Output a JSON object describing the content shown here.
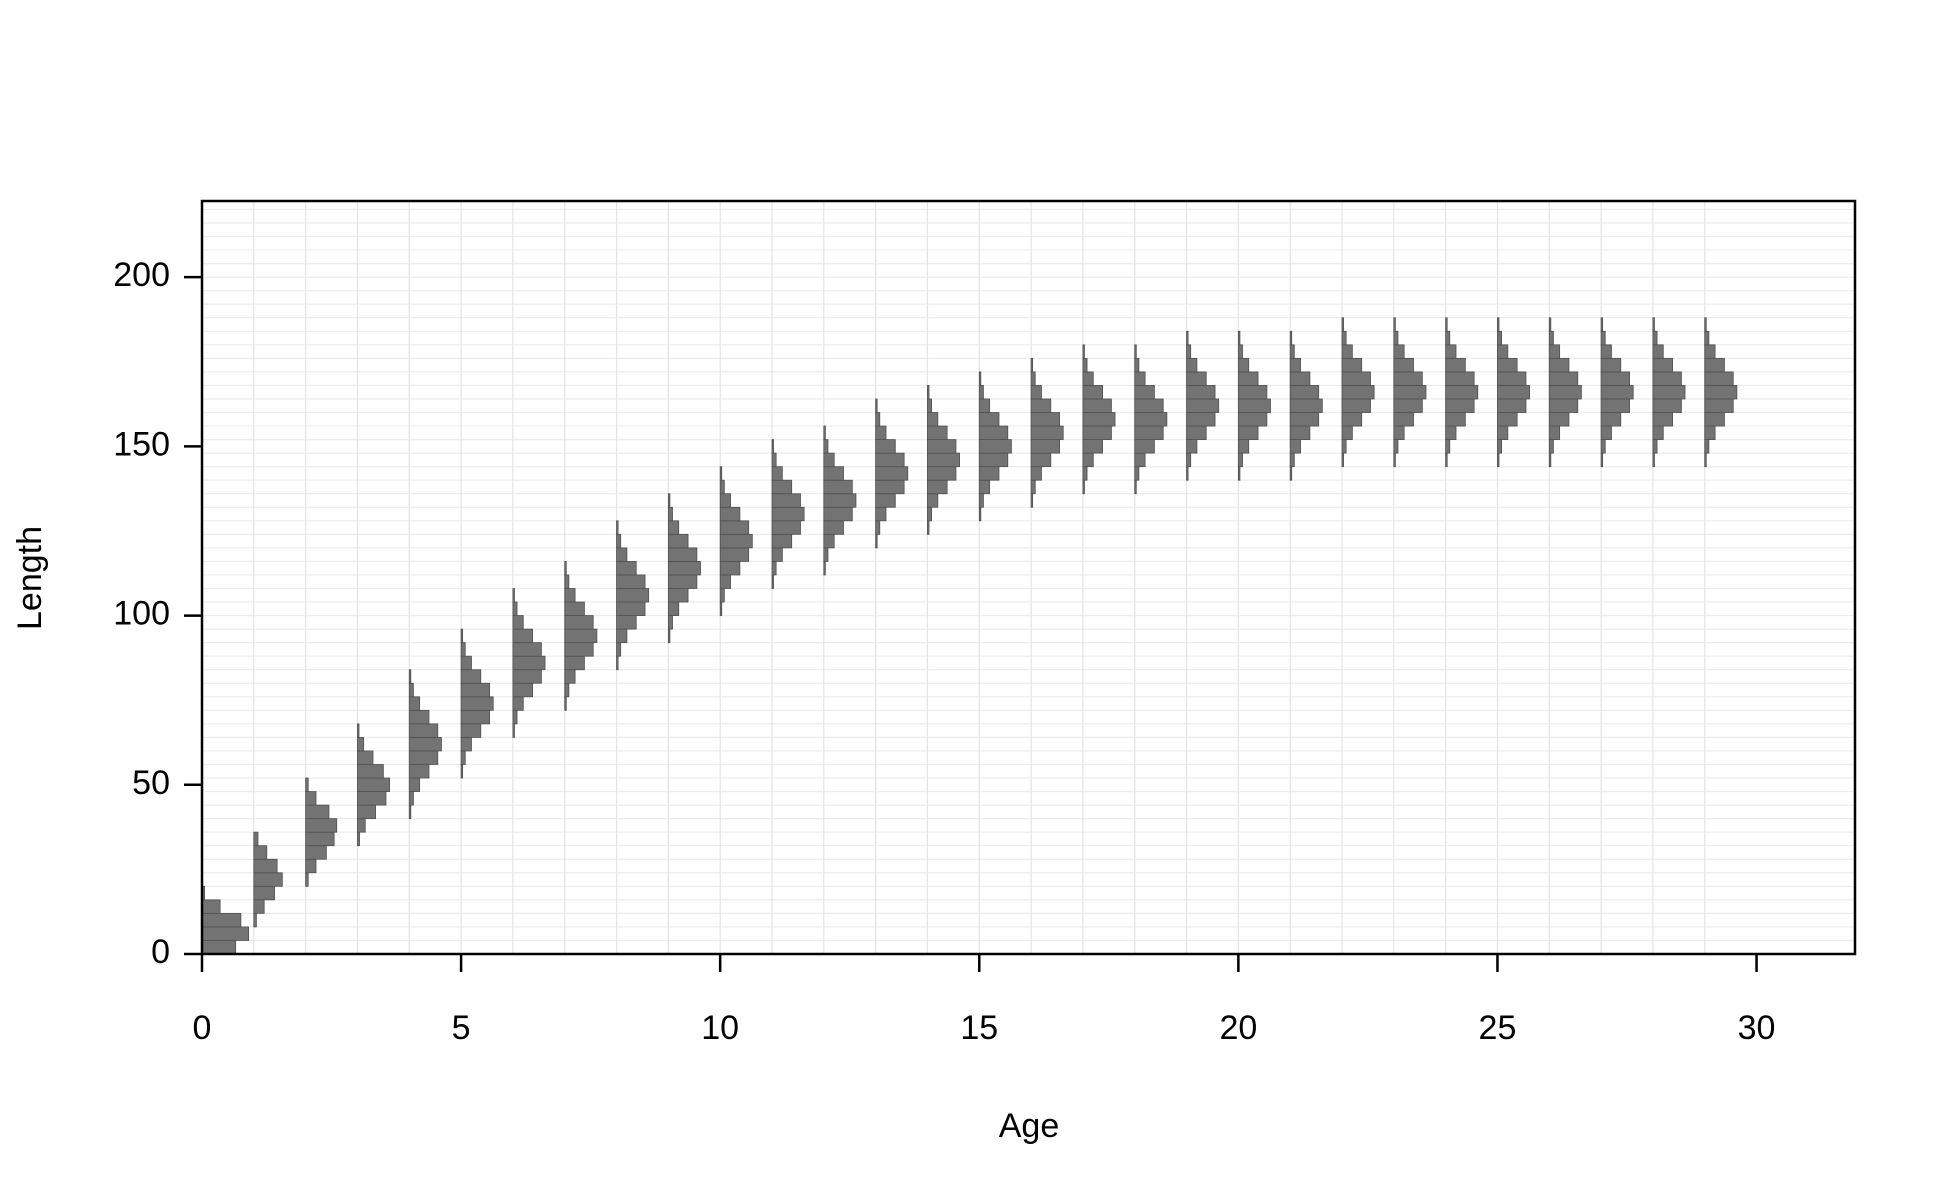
{
  "chart_data": {
    "type": "histogram",
    "x_label": "Age",
    "y_label": "Length",
    "color": "#737373",
    "xlim": [
      0,
      31.9
    ],
    "ylim": [
      0,
      222.5
    ],
    "xticks": [
      0,
      5,
      10,
      15,
      20,
      25,
      30
    ],
    "yticks": [
      0,
      50,
      100,
      150,
      200
    ],
    "grid": true,
    "ygrid": [
      0,
      4,
      8,
      12,
      16,
      20,
      24,
      28,
      32,
      36,
      40,
      44,
      48,
      52,
      56,
      60,
      64,
      68,
      72,
      76,
      80,
      84,
      88,
      92,
      96,
      100,
      104,
      108,
      112,
      116,
      120,
      124,
      128,
      132,
      136,
      140,
      144,
      148,
      152,
      156,
      160,
      164,
      168,
      172,
      176,
      180,
      184,
      188,
      192,
      196,
      200,
      204,
      208,
      212,
      216,
      220
    ],
    "series": [
      {
        "age": 0,
        "bins": [
          0,
          4,
          8,
          12,
          16,
          20
        ],
        "values": [
          0.65,
          0.9,
          0.75,
          0.35,
          0.05
        ]
      },
      {
        "age": 1,
        "bins": [
          8,
          12,
          16,
          20,
          24,
          28,
          32,
          36
        ],
        "values": [
          0.05,
          0.2,
          0.4,
          0.55,
          0.45,
          0.25,
          0.08
        ]
      },
      {
        "age": 2,
        "bins": [
          20,
          24,
          28,
          32,
          36,
          40,
          44,
          48,
          52
        ],
        "values": [
          0.05,
          0.2,
          0.4,
          0.55,
          0.6,
          0.45,
          0.2,
          0.05
        ]
      },
      {
        "age": 3,
        "bins": [
          32,
          36,
          40,
          44,
          48,
          52,
          56,
          60,
          64,
          68
        ],
        "values": [
          0.04,
          0.15,
          0.35,
          0.55,
          0.62,
          0.5,
          0.3,
          0.12,
          0.03
        ]
      },
      {
        "age": 4,
        "bins": [
          40,
          44,
          48,
          52,
          56,
          60,
          64,
          68,
          72,
          76,
          80,
          84
        ],
        "values": [
          0.03,
          0.08,
          0.2,
          0.38,
          0.55,
          0.62,
          0.55,
          0.38,
          0.2,
          0.08,
          0.03
        ]
      },
      {
        "age": 5,
        "bins": [
          52,
          56,
          60,
          64,
          68,
          72,
          76,
          80,
          84,
          88,
          92,
          96
        ],
        "values": [
          0.03,
          0.08,
          0.2,
          0.38,
          0.55,
          0.62,
          0.55,
          0.38,
          0.2,
          0.08,
          0.03
        ]
      },
      {
        "age": 6,
        "bins": [
          64,
          68,
          72,
          76,
          80,
          84,
          88,
          92,
          96,
          100,
          104,
          108
        ],
        "values": [
          0.03,
          0.08,
          0.2,
          0.38,
          0.55,
          0.62,
          0.55,
          0.38,
          0.2,
          0.08,
          0.03
        ]
      },
      {
        "age": 7,
        "bins": [
          72,
          76,
          80,
          84,
          88,
          92,
          96,
          100,
          104,
          108,
          112,
          116
        ],
        "values": [
          0.03,
          0.08,
          0.2,
          0.38,
          0.55,
          0.62,
          0.55,
          0.38,
          0.2,
          0.08,
          0.03
        ]
      },
      {
        "age": 8,
        "bins": [
          84,
          88,
          92,
          96,
          100,
          104,
          108,
          112,
          116,
          120,
          124,
          128
        ],
        "values": [
          0.03,
          0.08,
          0.2,
          0.38,
          0.55,
          0.62,
          0.55,
          0.38,
          0.2,
          0.08,
          0.03
        ]
      },
      {
        "age": 9,
        "bins": [
          92,
          96,
          100,
          104,
          108,
          112,
          116,
          120,
          124,
          128,
          132,
          136
        ],
        "values": [
          0.03,
          0.08,
          0.2,
          0.38,
          0.55,
          0.62,
          0.55,
          0.38,
          0.2,
          0.08,
          0.03
        ]
      },
      {
        "age": 10,
        "bins": [
          100,
          104,
          108,
          112,
          116,
          120,
          124,
          128,
          132,
          136,
          140,
          144
        ],
        "values": [
          0.03,
          0.08,
          0.2,
          0.38,
          0.55,
          0.62,
          0.55,
          0.38,
          0.2,
          0.08,
          0.03
        ]
      },
      {
        "age": 11,
        "bins": [
          108,
          112,
          116,
          120,
          124,
          128,
          132,
          136,
          140,
          144,
          148,
          152
        ],
        "values": [
          0.03,
          0.08,
          0.2,
          0.38,
          0.55,
          0.62,
          0.55,
          0.38,
          0.2,
          0.08,
          0.03
        ]
      },
      {
        "age": 12,
        "bins": [
          112,
          116,
          120,
          124,
          128,
          132,
          136,
          140,
          144,
          148,
          152,
          156
        ],
        "values": [
          0.03,
          0.08,
          0.2,
          0.38,
          0.55,
          0.62,
          0.55,
          0.38,
          0.2,
          0.08,
          0.03
        ]
      },
      {
        "age": 13,
        "bins": [
          120,
          124,
          128,
          132,
          136,
          140,
          144,
          148,
          152,
          156,
          160,
          164
        ],
        "values": [
          0.03,
          0.08,
          0.2,
          0.38,
          0.55,
          0.62,
          0.55,
          0.38,
          0.2,
          0.08,
          0.03
        ]
      },
      {
        "age": 14,
        "bins": [
          124,
          128,
          132,
          136,
          140,
          144,
          148,
          152,
          156,
          160,
          164,
          168
        ],
        "values": [
          0.03,
          0.08,
          0.2,
          0.38,
          0.55,
          0.62,
          0.55,
          0.38,
          0.2,
          0.08,
          0.03
        ]
      },
      {
        "age": 15,
        "bins": [
          128,
          132,
          136,
          140,
          144,
          148,
          152,
          156,
          160,
          164,
          168,
          172
        ],
        "values": [
          0.03,
          0.08,
          0.2,
          0.38,
          0.55,
          0.62,
          0.55,
          0.38,
          0.2,
          0.08,
          0.03
        ]
      },
      {
        "age": 16,
        "bins": [
          132,
          136,
          140,
          144,
          148,
          152,
          156,
          160,
          164,
          168,
          172,
          176
        ],
        "values": [
          0.03,
          0.08,
          0.2,
          0.38,
          0.55,
          0.62,
          0.55,
          0.38,
          0.2,
          0.08,
          0.03
        ]
      },
      {
        "age": 17,
        "bins": [
          136,
          140,
          144,
          148,
          152,
          156,
          160,
          164,
          168,
          172,
          176,
          180
        ],
        "values": [
          0.03,
          0.08,
          0.2,
          0.38,
          0.55,
          0.62,
          0.55,
          0.38,
          0.2,
          0.08,
          0.03
        ]
      },
      {
        "age": 18,
        "bins": [
          136,
          140,
          144,
          148,
          152,
          156,
          160,
          164,
          168,
          172,
          176,
          180
        ],
        "values": [
          0.03,
          0.08,
          0.2,
          0.38,
          0.55,
          0.62,
          0.55,
          0.38,
          0.2,
          0.08,
          0.03
        ]
      },
      {
        "age": 19,
        "bins": [
          140,
          144,
          148,
          152,
          156,
          160,
          164,
          168,
          172,
          176,
          180,
          184
        ],
        "values": [
          0.03,
          0.08,
          0.2,
          0.38,
          0.55,
          0.62,
          0.55,
          0.38,
          0.2,
          0.08,
          0.03
        ]
      },
      {
        "age": 20,
        "bins": [
          140,
          144,
          148,
          152,
          156,
          160,
          164,
          168,
          172,
          176,
          180,
          184
        ],
        "values": [
          0.03,
          0.08,
          0.2,
          0.38,
          0.55,
          0.62,
          0.55,
          0.38,
          0.2,
          0.08,
          0.03
        ]
      },
      {
        "age": 21,
        "bins": [
          140,
          144,
          148,
          152,
          156,
          160,
          164,
          168,
          172,
          176,
          180,
          184
        ],
        "values": [
          0.03,
          0.08,
          0.2,
          0.38,
          0.55,
          0.62,
          0.55,
          0.38,
          0.2,
          0.08,
          0.03
        ]
      },
      {
        "age": 22,
        "bins": [
          144,
          148,
          152,
          156,
          160,
          164,
          168,
          172,
          176,
          180,
          184,
          188
        ],
        "values": [
          0.03,
          0.08,
          0.2,
          0.38,
          0.55,
          0.62,
          0.55,
          0.38,
          0.2,
          0.08,
          0.03
        ]
      },
      {
        "age": 23,
        "bins": [
          144,
          148,
          152,
          156,
          160,
          164,
          168,
          172,
          176,
          180,
          184,
          188
        ],
        "values": [
          0.03,
          0.08,
          0.2,
          0.38,
          0.55,
          0.62,
          0.55,
          0.38,
          0.2,
          0.08,
          0.03
        ]
      },
      {
        "age": 24,
        "bins": [
          144,
          148,
          152,
          156,
          160,
          164,
          168,
          172,
          176,
          180,
          184,
          188
        ],
        "values": [
          0.03,
          0.08,
          0.2,
          0.38,
          0.55,
          0.62,
          0.55,
          0.38,
          0.2,
          0.08,
          0.03
        ]
      },
      {
        "age": 25,
        "bins": [
          144,
          148,
          152,
          156,
          160,
          164,
          168,
          172,
          176,
          180,
          184,
          188
        ],
        "values": [
          0.03,
          0.08,
          0.2,
          0.38,
          0.55,
          0.62,
          0.55,
          0.38,
          0.2,
          0.08,
          0.03
        ]
      },
      {
        "age": 26,
        "bins": [
          144,
          148,
          152,
          156,
          160,
          164,
          168,
          172,
          176,
          180,
          184,
          188
        ],
        "values": [
          0.03,
          0.08,
          0.2,
          0.38,
          0.55,
          0.62,
          0.55,
          0.38,
          0.2,
          0.08,
          0.03
        ]
      },
      {
        "age": 27,
        "bins": [
          144,
          148,
          152,
          156,
          160,
          164,
          168,
          172,
          176,
          180,
          184,
          188
        ],
        "values": [
          0.03,
          0.08,
          0.2,
          0.38,
          0.55,
          0.62,
          0.55,
          0.38,
          0.2,
          0.08,
          0.03
        ]
      },
      {
        "age": 28,
        "bins": [
          144,
          148,
          152,
          156,
          160,
          164,
          168,
          172,
          176,
          180,
          184,
          188
        ],
        "values": [
          0.03,
          0.08,
          0.2,
          0.38,
          0.55,
          0.62,
          0.55,
          0.38,
          0.2,
          0.08,
          0.03
        ]
      },
      {
        "age": 29,
        "bins": [
          144,
          148,
          152,
          156,
          160,
          164,
          168,
          172,
          176,
          180,
          184,
          188
        ],
        "values": [
          0.03,
          0.08,
          0.2,
          0.38,
          0.55,
          0.62,
          0.55,
          0.38,
          0.2,
          0.08,
          0.03
        ]
      }
    ]
  }
}
